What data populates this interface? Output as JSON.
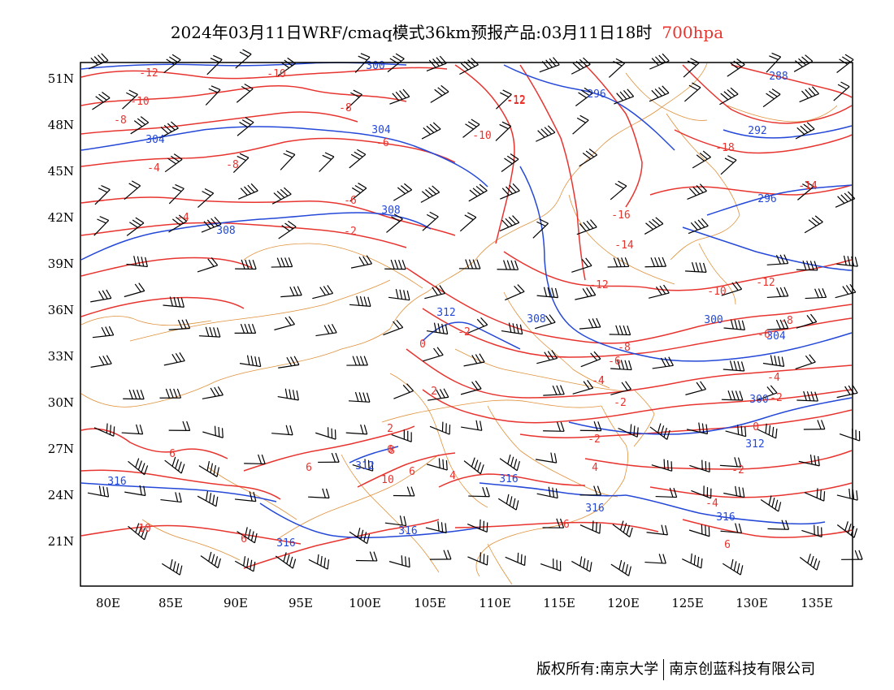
{
  "header": {
    "title": "2024年03月11日WRF/cmaq模式36km预报产品:03月11日18时",
    "level": "700hpa"
  },
  "footer": {
    "credit_left": "版权所有:南京大学",
    "credit_right": "南京创蓝科技有限公司"
  },
  "colors": {
    "temperature": "#e8342f",
    "height": "#2448d8",
    "borders": "#e0913a",
    "wind": "#000000",
    "level_text": "#e8342f"
  },
  "axes": {
    "lon_labels": [
      "80E",
      "85E",
      "90E",
      "95E",
      "100E",
      "105E",
      "110E",
      "115E",
      "120E",
      "125E",
      "130E",
      "135E"
    ],
    "lat_labels": [
      "51N",
      "48N",
      "45N",
      "42N",
      "39N",
      "36N",
      "33N",
      "30N",
      "27N",
      "24N",
      "21N"
    ]
  },
  "temperature_labels": [
    "-12",
    "-10",
    "-10",
    "-8",
    "-8",
    "-6",
    "-12",
    "-10",
    "-4",
    "-8",
    "-6",
    "-4",
    "-2",
    "-2",
    "-16",
    "-14",
    "-12",
    "-14",
    "-12",
    "-10",
    "-8",
    "-8",
    "-6",
    "-4",
    "-2",
    "-2",
    "0",
    "2",
    "2",
    "6",
    "6",
    "6",
    "6",
    "8",
    "10",
    "10",
    "6",
    "4",
    "4",
    "-2",
    "-4",
    "-12",
    "-18",
    "-14",
    "-4",
    "-6",
    "0",
    "-2",
    "-4",
    "-6",
    "6"
  ],
  "height_labels": [
    "300",
    "296",
    "288",
    "304",
    "304",
    "292",
    "308",
    "296",
    "308",
    "312",
    "308",
    "300",
    "304",
    "300",
    "312",
    "312",
    "316",
    "316",
    "316",
    "316",
    "316",
    "316"
  ]
}
